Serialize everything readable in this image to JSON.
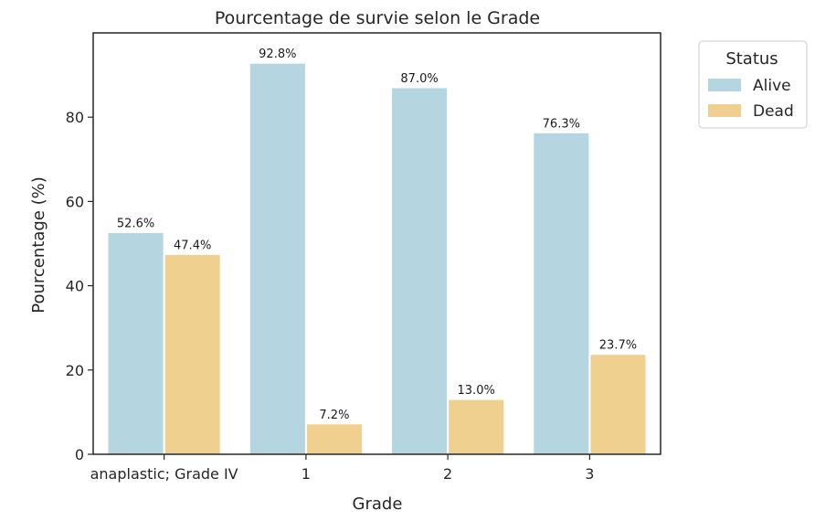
{
  "chart_data": {
    "type": "bar",
    "title": "Pourcentage de survie selon le Grade",
    "xlabel": "Grade",
    "ylabel": "Pourcentage (%)",
    "categories": [
      "anaplastic; Grade IV",
      "1",
      "2",
      "3"
    ],
    "series": [
      {
        "name": "Alive",
        "values": [
          52.6,
          92.8,
          87.0,
          76.3
        ],
        "labels": [
          "52.6%",
          "92.8%",
          "87.0%",
          "76.3%"
        ],
        "color": "#b5d6e0"
      },
      {
        "name": "Dead",
        "values": [
          47.4,
          7.2,
          13.0,
          23.7
        ],
        "labels": [
          "47.4%",
          "7.2%",
          "13.0%",
          "23.7%"
        ],
        "color": "#f0d08e"
      }
    ],
    "ylim": [
      0,
      100
    ],
    "yticks": [
      0,
      20,
      40,
      60,
      80
    ],
    "ytick_labels": [
      "0",
      "20",
      "40",
      "60",
      "80"
    ],
    "grid": false,
    "legend": {
      "title": "Status",
      "placement": "outside-top-right"
    }
  }
}
